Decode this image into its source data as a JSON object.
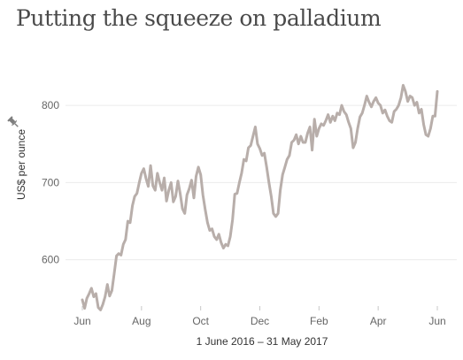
{
  "chart_data": {
    "type": "line",
    "title": "Putting the squeeze on palladium",
    "xlabel": "1 June 2016 – 31 May 2017",
    "ylabel": "US$ per ounce",
    "x_ticks": [
      "Jun",
      "Aug",
      "Oct",
      "Dec",
      "Feb",
      "Apr",
      "Jun"
    ],
    "y_ticks": [
      600,
      700,
      800
    ],
    "ylim": [
      540,
      870
    ],
    "grid": true,
    "line_color": "#b8aeaa",
    "ylabel_icon": "pin-icon",
    "series": [
      {
        "values": [
          548,
          537,
          550,
          556,
          563,
          552,
          556,
          538,
          535,
          542,
          552,
          568,
          553,
          560,
          582,
          605,
          608,
          606,
          620,
          626,
          650,
          648,
          670,
          682,
          686,
          700,
          712,
          718,
          705,
          695,
          722,
          696,
          690,
          712,
          700,
          690,
          706,
          676,
          690,
          700,
          675,
          682,
          702,
          686,
          666,
          660,
          684,
          692,
          703,
          680,
          708,
          720,
          710,
          684,
          665,
          648,
          638,
          640,
          630,
          626,
          633,
          622,
          615,
          620,
          618,
          630,
          652,
          685,
          686,
          700,
          712,
          730,
          728,
          745,
          748,
          760,
          772,
          750,
          744,
          735,
          738,
          720,
          700,
          682,
          660,
          656,
          660,
          690,
          710,
          720,
          730,
          735,
          752,
          755,
          762,
          750,
          760,
          752,
          752,
          764,
          772,
          742,
          782,
          760,
          770,
          776,
          774,
          780,
          788,
          778,
          786,
          780,
          790,
          788,
          800,
          792,
          788,
          778,
          770,
          745,
          752,
          770,
          785,
          790,
          800,
          812,
          804,
          798,
          805,
          810,
          803,
          800,
          790,
          794,
          786,
          780,
          778,
          792,
          795,
          800,
          810,
          826,
          818,
          805,
          812,
          810,
          800,
          804,
          790,
          795,
          775,
          762,
          760,
          770,
          786,
          786,
          818
        ]
      }
    ]
  }
}
